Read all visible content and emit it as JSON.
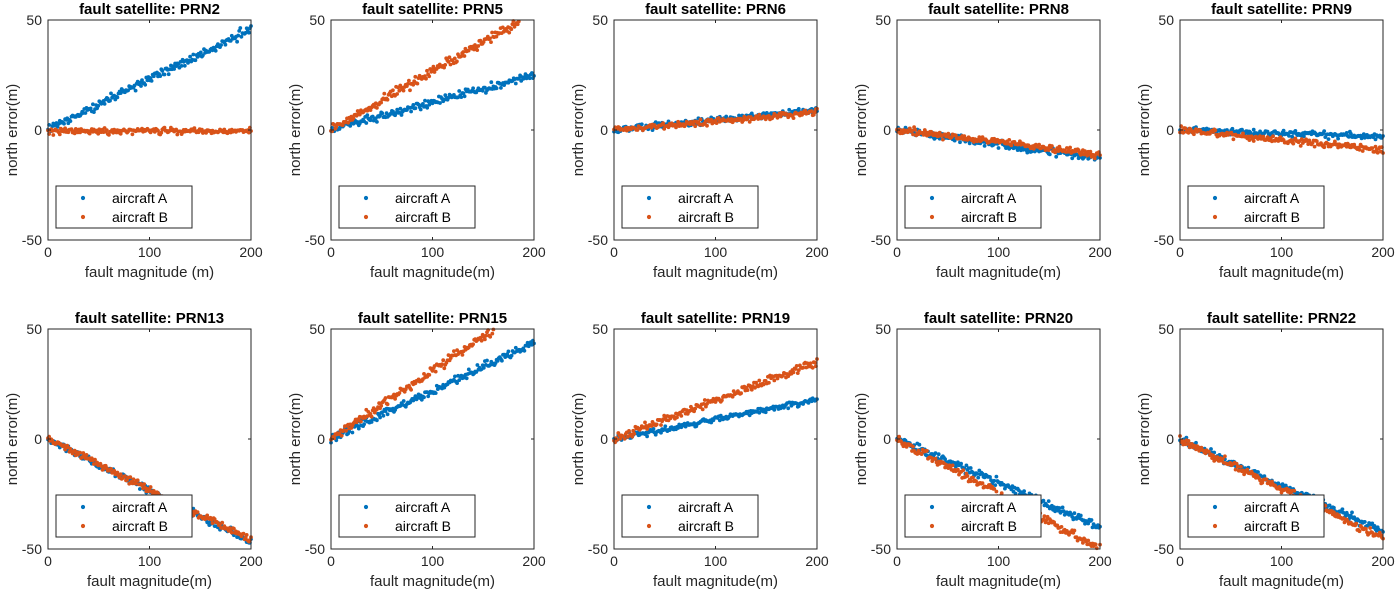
{
  "chart_data": [
    {
      "type": "scatter",
      "title": "fault satellite: PRN2",
      "xlabel": "fault magnitude (m)",
      "ylabel": "north error(m)",
      "xlim": [
        0,
        200
      ],
      "ylim": [
        -50,
        50
      ],
      "xticks": [
        "0",
        "100",
        "200"
      ],
      "yticks": [
        "-50",
        "0",
        "50"
      ],
      "legend": {
        "location": "bottom-left"
      },
      "series": [
        {
          "name": "aircraft A",
          "color": "#0072BD",
          "slope": 0.23,
          "intercept": 0,
          "noise": 1.8,
          "xmax": 200
        },
        {
          "name": "aircraft B",
          "color": "#D95319",
          "slope": 0.0,
          "intercept": -0.5,
          "noise": 1.2,
          "xmax": 200
        }
      ]
    },
    {
      "type": "scatter",
      "title": "fault satellite: PRN5",
      "xlabel": "fault magnitude(m)",
      "ylabel": "north error(m)",
      "xlim": [
        0,
        200
      ],
      "ylim": [
        -50,
        50
      ],
      "xticks": [
        "0",
        "100",
        "200"
      ],
      "yticks": [
        "-50",
        "0",
        "50"
      ],
      "legend": {
        "location": "bottom-left"
      },
      "series": [
        {
          "name": "aircraft A",
          "color": "#0072BD",
          "slope": 0.125,
          "intercept": 0,
          "noise": 1.6,
          "xmax": 200
        },
        {
          "name": "aircraft B",
          "color": "#D95319",
          "slope": 0.265,
          "intercept": 0,
          "noise": 1.8,
          "xmax": 185
        }
      ]
    },
    {
      "type": "scatter",
      "title": "fault satellite: PRN6",
      "xlabel": "fault magnitude(m)",
      "ylabel": "north error(m)",
      "xlim": [
        0,
        200
      ],
      "ylim": [
        -50,
        50
      ],
      "xticks": [
        "0",
        "100",
        "200"
      ],
      "yticks": [
        "-50",
        "0",
        "50"
      ],
      "legend": {
        "location": "bottom-left"
      },
      "series": [
        {
          "name": "aircraft A",
          "color": "#0072BD",
          "slope": 0.045,
          "intercept": 0,
          "noise": 1.3,
          "xmax": 200
        },
        {
          "name": "aircraft B",
          "color": "#D95319",
          "slope": 0.04,
          "intercept": 0,
          "noise": 1.3,
          "xmax": 200
        }
      ]
    },
    {
      "type": "scatter",
      "title": "fault satellite: PRN8",
      "xlabel": "fault magnitude(m)",
      "ylabel": "north error(m)",
      "xlim": [
        0,
        200
      ],
      "ylim": [
        -50,
        50
      ],
      "xticks": [
        "0",
        "100",
        "200"
      ],
      "yticks": [
        "-50",
        "0",
        "50"
      ],
      "legend": {
        "location": "bottom-left"
      },
      "series": [
        {
          "name": "aircraft A",
          "color": "#0072BD",
          "slope": -0.065,
          "intercept": 0,
          "noise": 1.4,
          "xmax": 200
        },
        {
          "name": "aircraft B",
          "color": "#D95319",
          "slope": -0.055,
          "intercept": 0,
          "noise": 1.4,
          "xmax": 200
        }
      ]
    },
    {
      "type": "scatter",
      "title": "fault satellite: PRN9",
      "xlabel": "fault magnitude(m)",
      "ylabel": "north error(m)",
      "xlim": [
        0,
        200
      ],
      "ylim": [
        -50,
        50
      ],
      "xticks": [
        "0",
        "100",
        "200"
      ],
      "yticks": [
        "-50",
        "0",
        "50"
      ],
      "legend": {
        "location": "bottom-left"
      },
      "series": [
        {
          "name": "aircraft A",
          "color": "#0072BD",
          "slope": -0.015,
          "intercept": 0,
          "noise": 1.2,
          "xmax": 200
        },
        {
          "name": "aircraft B",
          "color": "#D95319",
          "slope": -0.045,
          "intercept": 0,
          "noise": 1.4,
          "xmax": 200
        }
      ]
    },
    {
      "type": "scatter",
      "title": "fault satellite: PRN13",
      "xlabel": "fault magnitude(m)",
      "ylabel": "north error(m)",
      "xlim": [
        0,
        200
      ],
      "ylim": [
        -50,
        50
      ],
      "xticks": [
        "0",
        "100",
        "200"
      ],
      "yticks": [
        "-50",
        "0",
        "50"
      ],
      "legend": {
        "location": "bottom-left"
      },
      "series": [
        {
          "name": "aircraft A",
          "color": "#0072BD",
          "slope": -0.235,
          "intercept": 0,
          "noise": 1.5,
          "xmax": 200
        },
        {
          "name": "aircraft B",
          "color": "#D95319",
          "slope": -0.23,
          "intercept": 0,
          "noise": 1.5,
          "xmax": 200
        }
      ]
    },
    {
      "type": "scatter",
      "title": "fault satellite: PRN15",
      "xlabel": "fault magnitude(m)",
      "ylabel": "north error(m)",
      "xlim": [
        0,
        200
      ],
      "ylim": [
        -50,
        50
      ],
      "xticks": [
        "0",
        "100",
        "200"
      ],
      "yticks": [
        "-50",
        "0",
        "50"
      ],
      "legend": {
        "location": "bottom-left"
      },
      "series": [
        {
          "name": "aircraft A",
          "color": "#0072BD",
          "slope": 0.22,
          "intercept": 0,
          "noise": 1.6,
          "xmax": 200
        },
        {
          "name": "aircraft B",
          "color": "#D95319",
          "slope": 0.31,
          "intercept": 0,
          "noise": 1.8,
          "xmax": 160
        }
      ]
    },
    {
      "type": "scatter",
      "title": "fault satellite: PRN19",
      "xlabel": "fault magnitude(m)",
      "ylabel": "north error(m)",
      "xlim": [
        0,
        200
      ],
      "ylim": [
        -50,
        50
      ],
      "xticks": [
        "0",
        "100",
        "200"
      ],
      "yticks": [
        "-50",
        "0",
        "50"
      ],
      "legend": {
        "location": "bottom-left"
      },
      "series": [
        {
          "name": "aircraft A",
          "color": "#0072BD",
          "slope": 0.09,
          "intercept": 0,
          "noise": 1.3,
          "xmax": 200
        },
        {
          "name": "aircraft B",
          "color": "#D95319",
          "slope": 0.175,
          "intercept": 0,
          "noise": 1.6,
          "xmax": 200
        }
      ]
    },
    {
      "type": "scatter",
      "title": "fault satellite: PRN20",
      "xlabel": "fault magnitude(m)",
      "ylabel": "north error(m)",
      "xlim": [
        0,
        200
      ],
      "ylim": [
        -50,
        50
      ],
      "xticks": [
        "0",
        "100",
        "200"
      ],
      "yticks": [
        "-50",
        "0",
        "50"
      ],
      "legend": {
        "location": "bottom-left"
      },
      "series": [
        {
          "name": "aircraft A",
          "color": "#0072BD",
          "slope": -0.2,
          "intercept": 0,
          "noise": 1.6,
          "xmax": 200
        },
        {
          "name": "aircraft B",
          "color": "#D95319",
          "slope": -0.25,
          "intercept": 0,
          "noise": 1.7,
          "xmax": 200
        }
      ]
    },
    {
      "type": "scatter",
      "title": "fault satellite: PRN22",
      "xlabel": "fault magnitude(m)",
      "ylabel": "north error(m)",
      "xlim": [
        0,
        200
      ],
      "ylim": [
        -50,
        50
      ],
      "xticks": [
        "0",
        "100",
        "200"
      ],
      "yticks": [
        "-50",
        "0",
        "50"
      ],
      "legend": {
        "location": "bottom-left"
      },
      "series": [
        {
          "name": "aircraft A",
          "color": "#0072BD",
          "slope": -0.21,
          "intercept": 0,
          "noise": 1.5,
          "xmax": 200
        },
        {
          "name": "aircraft B",
          "color": "#D95319",
          "slope": -0.225,
          "intercept": 0,
          "noise": 1.5,
          "xmax": 200
        }
      ]
    }
  ]
}
